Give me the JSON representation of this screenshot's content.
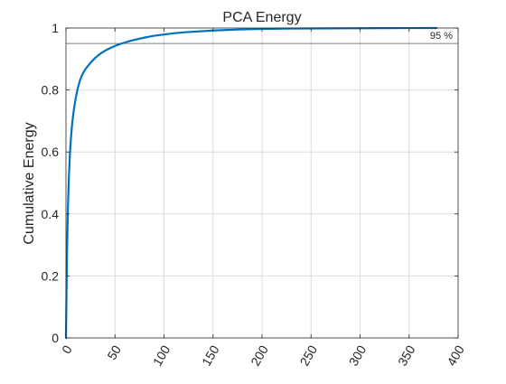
{
  "chart_data": {
    "type": "line",
    "title": "PCA Energy",
    "xlabel": "",
    "ylabel": "Cumulative Energy",
    "xlim": [
      0,
      400
    ],
    "ylim": [
      0,
      1
    ],
    "xticks": [
      0,
      50,
      100,
      150,
      200,
      250,
      300,
      350,
      400
    ],
    "yticks": [
      0,
      0.2,
      0.4,
      0.6,
      0.8,
      1
    ],
    "grid": true,
    "line_color": "#0072BD",
    "reference_line": {
      "y": 0.95,
      "label": "95 %",
      "color": "#555555"
    },
    "series": [
      {
        "x": [
          0,
          1,
          2,
          3,
          4,
          5,
          6,
          7,
          8,
          10,
          12,
          14,
          16,
          18,
          20,
          25,
          30,
          35,
          40,
          45,
          50,
          55,
          60,
          65,
          70,
          80,
          90,
          100,
          110,
          120,
          130,
          140,
          150,
          175,
          200,
          225,
          250,
          275,
          300,
          325,
          350,
          378
        ],
        "values": [
          0,
          0.26,
          0.42,
          0.52,
          0.59,
          0.64,
          0.68,
          0.71,
          0.735,
          0.775,
          0.805,
          0.828,
          0.845,
          0.858,
          0.868,
          0.888,
          0.904,
          0.917,
          0.927,
          0.935,
          0.942,
          0.948,
          0.953,
          0.958,
          0.962,
          0.969,
          0.975,
          0.979,
          0.983,
          0.986,
          0.988,
          0.99,
          0.992,
          0.995,
          0.997,
          0.998,
          0.9985,
          0.999,
          0.9993,
          0.9996,
          0.9998,
          1.0
        ]
      }
    ]
  }
}
